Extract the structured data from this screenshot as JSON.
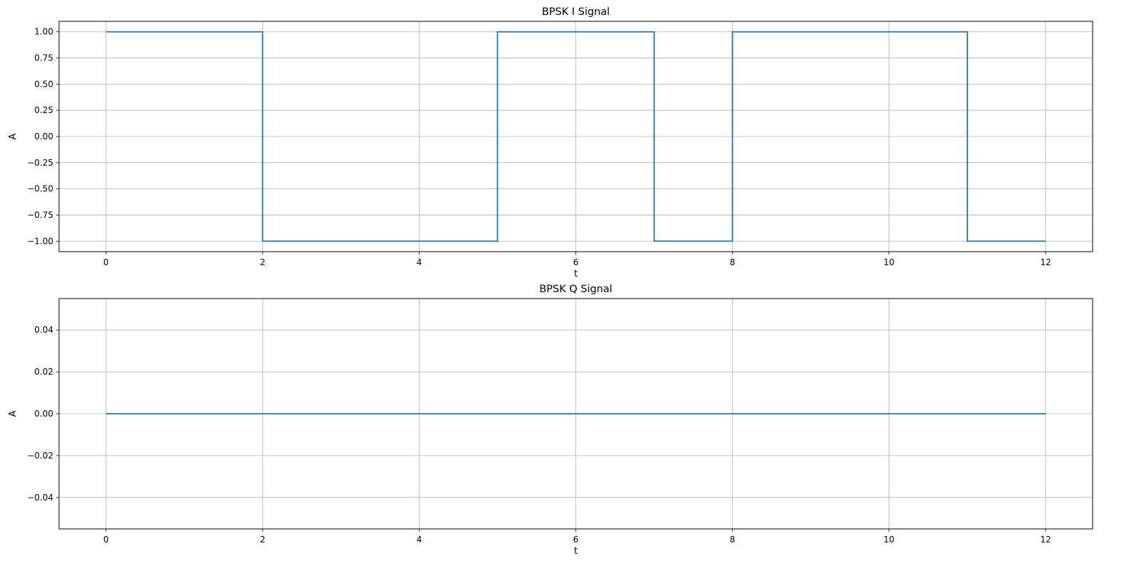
{
  "chart_data": [
    {
      "type": "line",
      "step": "post",
      "title": "BPSK I Signal",
      "xlabel": "t",
      "ylabel": "A",
      "x": [
        0,
        1,
        2,
        3,
        4,
        5,
        6,
        7,
        8,
        9,
        10,
        11,
        12
      ],
      "y": [
        1,
        1,
        -1,
        -1,
        -1,
        1,
        1,
        -1,
        1,
        1,
        1,
        -1,
        -1
      ],
      "xlim": [
        -0.6,
        12.6
      ],
      "ylim": [
        -1.1,
        1.1
      ],
      "xticks": [
        0,
        2,
        4,
        6,
        8,
        10,
        12
      ],
      "xtick_labels": [
        "0",
        "2",
        "4",
        "6",
        "8",
        "10",
        "12"
      ],
      "yticks": [
        1.0,
        0.75,
        0.5,
        0.25,
        0.0,
        -0.25,
        -0.5,
        -0.75,
        -1.0
      ],
      "ytick_labels": [
        "1.00",
        "0.75",
        "0.50",
        "0.25",
        "0.00",
        "−0.25",
        "−0.50",
        "−0.75",
        "−1.00"
      ],
      "grid": true,
      "color": "#1f77b4"
    },
    {
      "type": "line",
      "step": "post",
      "title": "BPSK Q Signal",
      "xlabel": "t",
      "ylabel": "A",
      "x": [
        0,
        1,
        2,
        3,
        4,
        5,
        6,
        7,
        8,
        9,
        10,
        11,
        12
      ],
      "y": [
        0,
        0,
        0,
        0,
        0,
        0,
        0,
        0,
        0,
        0,
        0,
        0,
        0
      ],
      "xlim": [
        -0.6,
        12.6
      ],
      "ylim": [
        -0.055,
        0.055
      ],
      "xticks": [
        0,
        2,
        4,
        6,
        8,
        10,
        12
      ],
      "xtick_labels": [
        "0",
        "2",
        "4",
        "6",
        "8",
        "10",
        "12"
      ],
      "yticks": [
        0.04,
        0.02,
        0.0,
        -0.02,
        -0.04
      ],
      "ytick_labels": [
        "0.04",
        "0.02",
        "0.00",
        "−0.02",
        "−0.04"
      ],
      "grid": true,
      "color": "#1f77b4"
    }
  ]
}
